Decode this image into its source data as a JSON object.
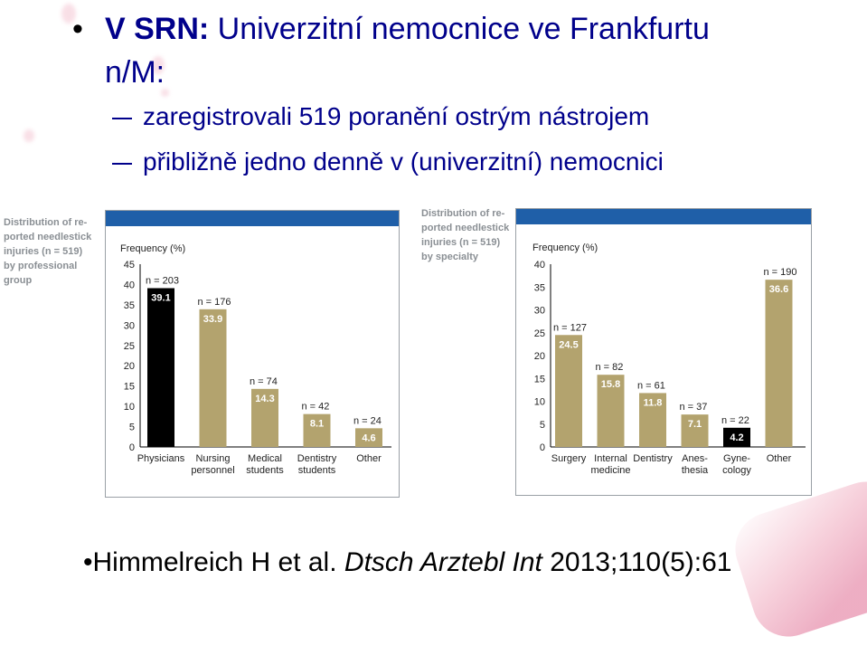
{
  "slide": {
    "bullet": "•",
    "title_bold": "V SRN:",
    "title_rest": " Univerzitní nemocnice ve Frankfurtu",
    "title_line2": "n/M:",
    "sub1": "zaregistrovali 519 poranění ostrým nástrojem",
    "sub2": "přibližně jedno denně v (univerzitní) nemocnici",
    "citation_prefix": "•Himmelreich H et al. ",
    "citation_journal": "Dtsch Arztebl Int",
    "citation_suffix": " 2013;110(5):61"
  },
  "captions": {
    "left": "Distribution of re-ported needlestick injuries (n = 519) by professional group",
    "right": "Distribution of re-ported needlestick injuries (n = 519) by specialty"
  },
  "colors": {
    "bar": "#b3a36e",
    "highlight": "#000000",
    "topbar": "#1f5fa8",
    "axis": "#000000"
  },
  "chart_data": [
    {
      "type": "bar",
      "title": "",
      "ylabel": "Frequency (%)",
      "xlabel": "",
      "ylim": [
        0,
        45
      ],
      "yticks": [
        0,
        5,
        10,
        15,
        20,
        25,
        30,
        35,
        40,
        45
      ],
      "categories": [
        [
          "Physicians"
        ],
        [
          "Nursing",
          "personnel"
        ],
        [
          "Medical",
          "students"
        ],
        [
          "Dentistry",
          "students"
        ],
        [
          "Other"
        ]
      ],
      "values": [
        39.1,
        33.9,
        14.3,
        8.1,
        4.6
      ],
      "value_labels": [
        "39.1",
        "33.9",
        "14.3",
        "8.1",
        "4.6"
      ],
      "n_labels": [
        "n = 203",
        "n = 176",
        "n = 74",
        "n = 42",
        "n = 24"
      ],
      "highlight": [
        0
      ],
      "grid": false
    },
    {
      "type": "bar",
      "title": "",
      "ylabel": "Frequency (%)",
      "xlabel": "",
      "ylim": [
        0,
        40
      ],
      "yticks": [
        0,
        5,
        10,
        15,
        20,
        25,
        30,
        35,
        40
      ],
      "categories": [
        [
          "Surgery"
        ],
        [
          "Internal",
          "medicine"
        ],
        [
          "Dentistry"
        ],
        [
          "Anes-",
          "thesia"
        ],
        [
          "Gyne-",
          "cology"
        ],
        [
          "Other"
        ]
      ],
      "values": [
        24.5,
        15.8,
        11.8,
        7.1,
        4.2,
        36.6
      ],
      "value_labels": [
        "24.5",
        "15.8",
        "11.8",
        "7.1",
        "4.2",
        "36.6"
      ],
      "n_labels": [
        "n = 127",
        "n = 82",
        "n = 61",
        "n = 37",
        "n = 22",
        "n = 190"
      ],
      "highlight": [
        4
      ],
      "grid": false
    }
  ]
}
